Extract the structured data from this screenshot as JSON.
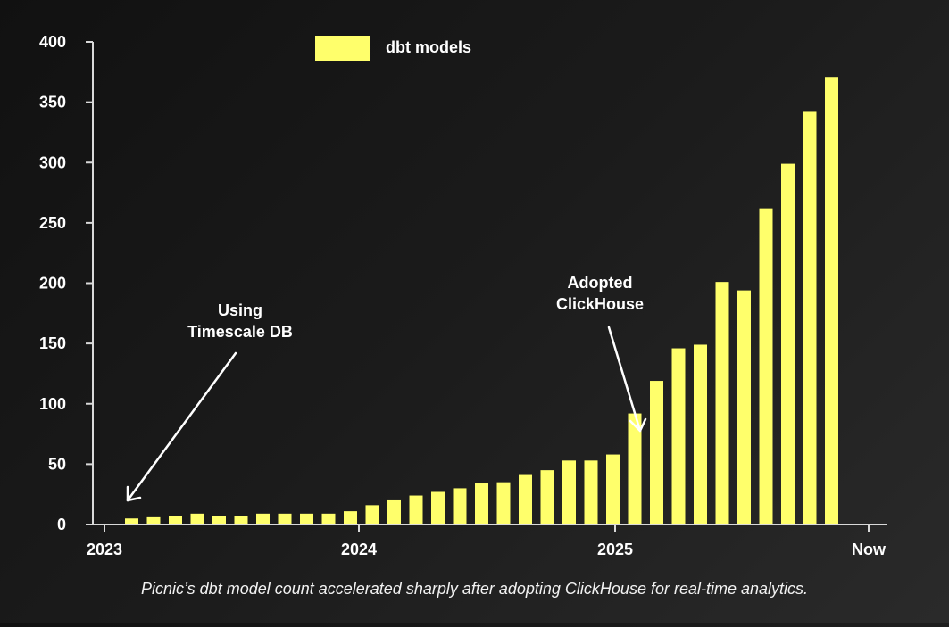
{
  "colors": {
    "bar": "#ffff6b",
    "axis": "#d9d9d9",
    "text": "#ffffff"
  },
  "legend": {
    "label": "dbt models"
  },
  "annotations": {
    "timescale_line1": "Using",
    "timescale_line2": "Timescale DB",
    "clickhouse_line1": "Adopted",
    "clickhouse_line2": "ClickHouse"
  },
  "caption": "Picnic’s dbt model count accelerated sharply after adopting ClickHouse for real-time analytics.",
  "chart_data": {
    "type": "bar",
    "title": "",
    "xlabel": "",
    "ylabel": "",
    "ylim": [
      0,
      400
    ],
    "y_ticks": [
      0,
      50,
      100,
      150,
      200,
      250,
      300,
      350,
      400
    ],
    "x_ticks": [
      "2023",
      "2024",
      "2025",
      "Now"
    ],
    "x_tick_positions": [
      0,
      11,
      22,
      33
    ],
    "series": [
      {
        "name": "dbt models",
        "values": [
          5,
          6,
          7,
          9,
          7,
          7,
          9,
          9,
          9,
          9,
          11,
          16,
          20,
          24,
          27,
          30,
          34,
          35,
          41,
          45,
          53,
          53,
          58,
          92,
          119,
          146,
          149,
          201,
          194,
          262,
          299,
          342,
          371
        ]
      }
    ],
    "legend_position": "top-left"
  }
}
